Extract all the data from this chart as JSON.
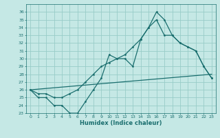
{
  "xlabel": "Humidex (Indice chaleur)",
  "bg_color": "#c5e8e5",
  "grid_color": "#98ccc8",
  "line_color": "#1a6e6e",
  "xlim": [
    -0.5,
    23.5
  ],
  "ylim": [
    23,
    37
  ],
  "xticks": [
    0,
    1,
    2,
    3,
    4,
    5,
    6,
    7,
    8,
    9,
    10,
    11,
    12,
    13,
    14,
    15,
    16,
    17,
    18,
    19,
    20,
    21,
    22,
    23
  ],
  "yticks": [
    23,
    24,
    25,
    26,
    27,
    28,
    29,
    30,
    31,
    32,
    33,
    34,
    35,
    36
  ],
  "line1_x": [
    0,
    1,
    2,
    3,
    4,
    5,
    6,
    7,
    8,
    9,
    10,
    11,
    12,
    13,
    14,
    15,
    16,
    17,
    18,
    19,
    20,
    21,
    22,
    23
  ],
  "line1_y": [
    26,
    25,
    25,
    24,
    24,
    23,
    23,
    24.5,
    26,
    27.5,
    30.5,
    30,
    30,
    29,
    32.5,
    34,
    36,
    35,
    33,
    32,
    31.5,
    31,
    29,
    27.5
  ],
  "line2_x": [
    0,
    1,
    2,
    3,
    4,
    5,
    6,
    7,
    8,
    9,
    10,
    11,
    12,
    13,
    14,
    15,
    16,
    17,
    18,
    19,
    20,
    21,
    22,
    23
  ],
  "line2_y": [
    26,
    25.5,
    25.5,
    25,
    25,
    25.5,
    26,
    27,
    28,
    29,
    29.5,
    30,
    30.5,
    31.5,
    32.5,
    34,
    35,
    33,
    33,
    32,
    31.5,
    31,
    29,
    27.5
  ],
  "line3_x": [
    0,
    23
  ],
  "line3_y": [
    26,
    28
  ]
}
